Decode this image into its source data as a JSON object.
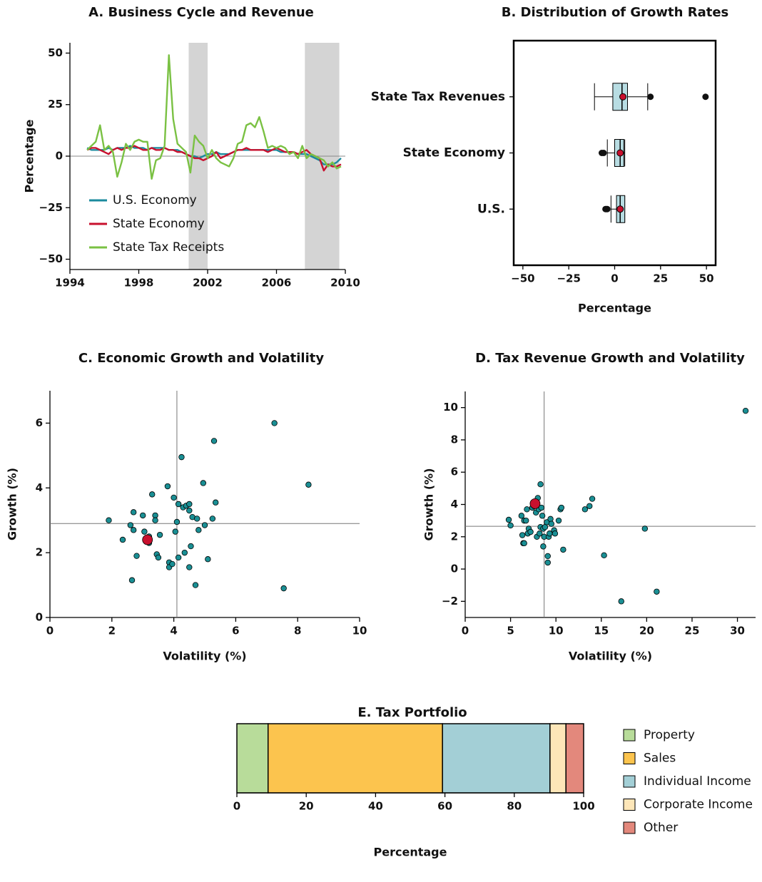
{
  "chart_data": [
    {
      "type": "line",
      "title": "A. Business Cycle and Revenue",
      "ylabel": "Percentage",
      "x": [
        1995,
        1995.25,
        1995.5,
        1995.75,
        1996,
        1996.25,
        1996.5,
        1996.75,
        1997,
        1997.25,
        1997.5,
        1997.75,
        1998,
        1998.25,
        1998.5,
        1998.75,
        1999,
        1999.25,
        1999.5,
        1999.75,
        2000,
        2000.25,
        2000.5,
        2000.75,
        2001,
        2001.25,
        2001.5,
        2001.75,
        2002,
        2002.25,
        2002.5,
        2002.75,
        2003,
        2003.25,
        2003.5,
        2003.75,
        2004,
        2004.25,
        2004.5,
        2004.75,
        2005,
        2005.25,
        2005.5,
        2005.75,
        2006,
        2006.25,
        2006.5,
        2006.75,
        2007,
        2007.25,
        2007.5,
        2007.75,
        2008,
        2008.25,
        2008.5,
        2008.75,
        2009,
        2009.25,
        2009.5,
        2009.75
      ],
      "series": [
        {
          "name": "U.S. Economy",
          "color": "#1b8a9e",
          "values": [
            4,
            3,
            3,
            3,
            3,
            4,
            3,
            4,
            4,
            4,
            5,
            4,
            4,
            4,
            3,
            4,
            4,
            4,
            4,
            3,
            3,
            3,
            2,
            1,
            0,
            0,
            -1,
            0,
            1,
            1,
            2,
            1,
            1,
            1,
            2,
            3,
            3,
            3,
            3,
            3,
            3,
            3,
            3,
            3,
            3,
            2,
            2,
            2,
            2,
            1,
            1,
            1,
            0,
            -1,
            -2,
            -4,
            -4,
            -4,
            -3,
            -1
          ]
        },
        {
          "name": "State Economy",
          "color": "#c8102e",
          "values": [
            3,
            4,
            4,
            3,
            2,
            1,
            3,
            4,
            3,
            4,
            4,
            5,
            4,
            3,
            3,
            4,
            3,
            3,
            4,
            3,
            3,
            2,
            2,
            1,
            0,
            -1,
            -1,
            -2,
            -1,
            0,
            2,
            -1,
            0,
            1,
            2,
            3,
            3,
            4,
            3,
            3,
            3,
            3,
            2,
            3,
            4,
            3,
            2,
            2,
            2,
            1,
            2,
            3,
            1,
            0,
            -1,
            -7,
            -4,
            -5,
            -5,
            -4
          ]
        },
        {
          "name": "State Tax Receipts",
          "color": "#7ac143",
          "values": [
            3,
            5,
            7,
            15,
            3,
            5,
            2,
            -10,
            -3,
            6,
            3,
            7,
            8,
            7,
            7,
            -11,
            -2,
            -1,
            5,
            49,
            18,
            6,
            4,
            2,
            -8,
            10,
            7,
            5,
            -1,
            3,
            -1,
            -3,
            -4,
            -5,
            -1,
            6,
            7,
            15,
            16,
            14,
            19,
            12,
            4,
            5,
            4,
            5,
            4,
            1,
            2,
            -1,
            5,
            -1,
            1,
            0,
            -1,
            -2,
            -5,
            -3,
            -6,
            -5
          ]
        }
      ],
      "shaded": [
        [
          2000.9,
          2002.0
        ],
        [
          2007.65,
          2009.65
        ]
      ],
      "shade_color": "#d4d4d4",
      "xlim": [
        1994,
        2010
      ],
      "xticks": [
        1994,
        1998,
        2002,
        2006,
        2010
      ],
      "ylim": [
        -55,
        55
      ],
      "yticks": [
        {
          "value": -50,
          "label": "−50"
        },
        {
          "value": -25,
          "label": "−25"
        },
        0,
        25,
        50
      ],
      "legend": "lower left"
    },
    {
      "type": "box",
      "title": "B. Distribution of Growth Rates",
      "xlabel": "Percentage",
      "categories": [
        "State Tax Revenues",
        "State Economy",
        "U.S."
      ],
      "boxes": [
        {
          "whislo": -11,
          "q1": -1,
          "med": 4,
          "q3": 7,
          "whishi": 18,
          "mean": 4.5,
          "fliers": [
            19.5,
            49.5
          ]
        },
        {
          "whislo": -4,
          "q1": 0,
          "med": 3,
          "q3": 5,
          "whishi": 5.5,
          "mean": 3,
          "fliers": [
            -7,
            -6
          ]
        },
        {
          "whislo": -2,
          "q1": 1,
          "med": 3,
          "q3": 5.5,
          "whishi": 5.5,
          "mean": 3,
          "fliers": [
            -5,
            -4.5,
            -4
          ]
        }
      ],
      "box_color": "#b8dde3",
      "mean_color": "#c8102e",
      "xlim": [
        -55,
        55
      ],
      "xticks": [
        {
          "value": -50,
          "label": "−50"
        },
        {
          "value": -25,
          "label": "−25"
        },
        0,
        25,
        50
      ]
    },
    {
      "type": "scatter",
      "title": "C. Economic Growth and Volatility",
      "xlabel": "Volatility (%)",
      "ylabel": "Growth (%)",
      "x": [
        1.9,
        2.35,
        2.6,
        2.7,
        2.7,
        2.65,
        2.8,
        3.0,
        3.05,
        3.2,
        3.2,
        3.3,
        3.4,
        3.4,
        3.45,
        3.5,
        3.55,
        3.8,
        3.85,
        3.85,
        3.95,
        4.0,
        4.05,
        4.1,
        4.15,
        4.15,
        4.25,
        4.3,
        4.35,
        4.4,
        4.5,
        4.5,
        4.5,
        4.55,
        4.6,
        4.7,
        4.75,
        4.8,
        4.95,
        5.0,
        5.1,
        5.25,
        5.3,
        5.35,
        7.25,
        7.55,
        8.35
      ],
      "values": [
        3.0,
        2.4,
        2.85,
        3.25,
        2.7,
        1.15,
        1.9,
        3.15,
        2.65,
        2.3,
        2.5,
        3.8,
        3.15,
        3.0,
        1.95,
        1.85,
        2.55,
        4.05,
        1.7,
        1.55,
        1.65,
        3.7,
        2.65,
        2.95,
        1.85,
        3.5,
        4.95,
        3.4,
        2.0,
        3.45,
        3.3,
        1.55,
        3.5,
        2.2,
        3.1,
        1.0,
        3.05,
        2.7,
        4.15,
        2.85,
        1.8,
        3.05,
        5.45,
        3.55,
        6.0,
        0.9,
        4.1
      ],
      "color": "#1a8f94",
      "highlight": {
        "x": 3.15,
        "y": 2.4,
        "color": "#c8102e"
      },
      "ref_x": 4.1,
      "ref_y": 2.9,
      "xlim": [
        0,
        10
      ],
      "xticks": [
        0,
        2,
        4,
        6,
        8,
        10
      ],
      "ylim": [
        0,
        7
      ],
      "yticks": [
        0,
        2,
        4,
        6
      ]
    },
    {
      "type": "scatter",
      "title": "D. Tax Revenue Growth and Volatility",
      "xlabel": "Volatility (%)",
      "ylabel": "Growth (%)",
      "x": [
        4.8,
        5.0,
        6.2,
        6.3,
        6.4,
        6.5,
        6.5,
        6.7,
        6.8,
        6.9,
        7.0,
        7.2,
        7.4,
        7.6,
        7.8,
        7.9,
        8.0,
        8.1,
        8.2,
        8.3,
        8.3,
        8.4,
        8.5,
        8.6,
        8.7,
        8.8,
        8.6,
        9.0,
        9.1,
        9.1,
        9.2,
        9.3,
        9.4,
        9.5,
        9.8,
        9.9,
        10.3,
        10.5,
        10.6,
        10.8,
        13.2,
        13.7,
        14.0,
        15.3,
        17.2,
        19.8,
        21.1,
        30.9
      ],
      "values": [
        3.05,
        2.7,
        3.3,
        2.1,
        1.6,
        1.6,
        3.0,
        3.0,
        3.7,
        2.2,
        2.5,
        2.3,
        3.8,
        3.9,
        3.5,
        2.0,
        4.4,
        3.7,
        2.2,
        5.25,
        2.6,
        3.8,
        3.3,
        2.5,
        2.0,
        2.6,
        1.4,
        2.9,
        0.8,
        0.4,
        2.0,
        2.2,
        3.1,
        2.8,
        2.4,
        2.2,
        3.0,
        3.7,
        3.8,
        1.2,
        3.7,
        3.9,
        4.35,
        0.85,
        -2.0,
        2.5,
        -1.4,
        9.8
      ],
      "color": "#1a8f94",
      "highlight": {
        "x": 7.7,
        "y": 4.05,
        "color": "#c8102e"
      },
      "ref_x": 8.7,
      "ref_y": 2.65,
      "xlim": [
        0,
        32
      ],
      "xticks": [
        0,
        5,
        10,
        15,
        20,
        25,
        30
      ],
      "ylim": [
        -3,
        11
      ],
      "yticks": [
        {
          "value": -2,
          "label": "−2"
        },
        0,
        2,
        4,
        6,
        8,
        10
      ]
    },
    {
      "type": "stacked_bar",
      "title": "E. Tax Portfolio",
      "xlabel": "Percentage",
      "series": [
        {
          "name": "Property",
          "color": "#b8dc9a",
          "values": [
            9
          ]
        },
        {
          "name": "Sales",
          "color": "#fcc44e",
          "values": [
            50.3
          ]
        },
        {
          "name": "Individual Income",
          "color": "#a3cfd6",
          "values": [
            31
          ]
        },
        {
          "name": "Corporate Income",
          "color": "#fde6b8",
          "values": [
            4.6
          ]
        },
        {
          "name": "Other",
          "color": "#e3887c",
          "values": [
            5.1
          ]
        }
      ],
      "xlim": [
        0,
        100
      ],
      "xticks": [
        0,
        20,
        40,
        60,
        80,
        100
      ],
      "legend": "right"
    }
  ]
}
